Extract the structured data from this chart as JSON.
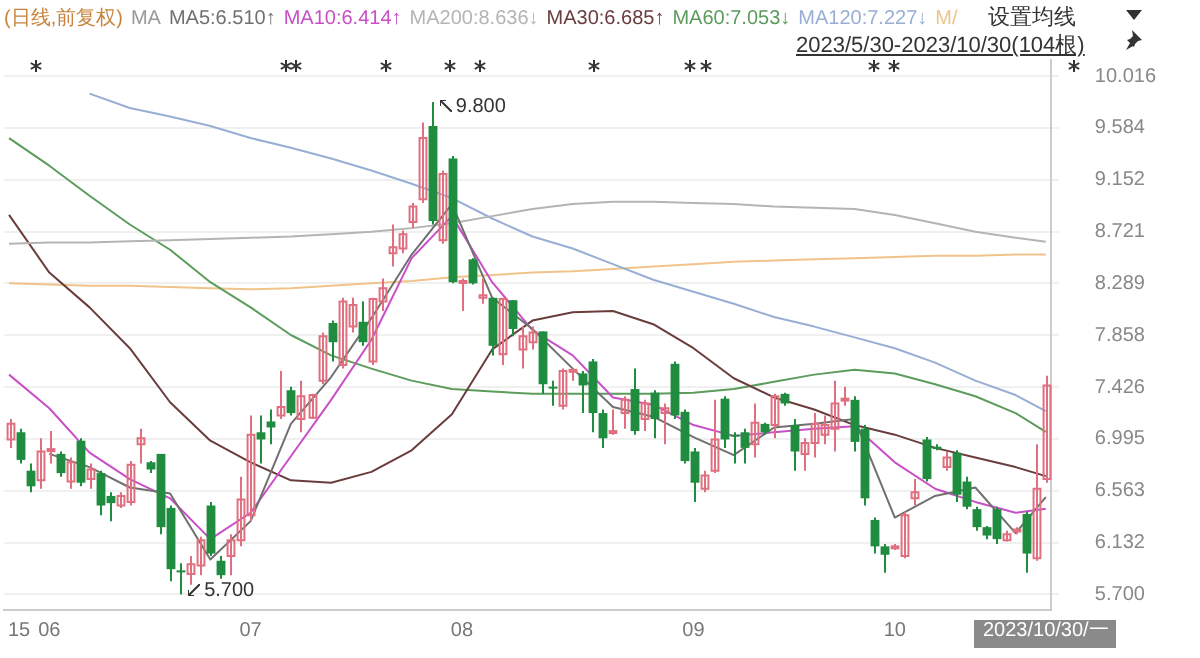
{
  "chart_data": {
    "type": "candlestick",
    "title": "(日线,前复权)",
    "subtitle": "2023/5/30-2023/10/30(104根)",
    "legend_title": "MA",
    "legend": "top left",
    "grid": "y",
    "marker": "none",
    "categories": [
      null,
      "15",
      null,
      null,
      "06",
      null,
      null,
      null,
      null,
      null,
      null,
      null,
      null,
      null,
      null,
      null,
      null,
      null,
      null,
      null,
      null,
      null,
      null,
      null,
      "07",
      null,
      null,
      null,
      null,
      null,
      null,
      null,
      null,
      null,
      null,
      null,
      null,
      null,
      null,
      null,
      null,
      null,
      null,
      null,
      null,
      "08",
      null,
      null,
      null,
      null,
      null,
      null,
      null,
      null,
      null,
      null,
      null,
      null,
      null,
      null,
      null,
      null,
      null,
      null,
      null,
      null,
      null,
      null,
      "09",
      null,
      null,
      null,
      null,
      null,
      null,
      null,
      null,
      null,
      null,
      null,
      null,
      null,
      null,
      null,
      null,
      null,
      null,
      null,
      "10",
      null,
      null,
      null,
      null,
      null,
      null,
      null,
      null,
      null,
      null,
      null,
      null,
      null,
      null,
      "2023/10/30/一"
    ],
    "ylim": [
      5.57,
      10.15
    ],
    "yticks": [
      {
        "value": 5.7,
        "label": "5.700"
      },
      6.132,
      6.563,
      6.995,
      7.426,
      7.858,
      8.289,
      8.721,
      9.152,
      9.584,
      10.016
    ],
    "ohlc": [
      [
        6.99,
        7.16,
        6.92,
        7.12
      ],
      [
        7.05,
        7.08,
        6.79,
        6.82
      ],
      [
        6.73,
        6.79,
        6.55,
        6.6
      ],
      [
        6.65,
        7.0,
        6.58,
        6.89
      ],
      [
        6.9,
        7.06,
        6.79,
        6.91
      ],
      [
        6.87,
        6.89,
        6.68,
        6.71
      ],
      [
        6.64,
        6.84,
        6.58,
        6.8
      ],
      [
        6.98,
        7.0,
        6.6,
        6.63
      ],
      [
        6.66,
        6.79,
        6.58,
        6.74
      ],
      [
        6.71,
        6.73,
        6.36,
        6.44
      ],
      [
        6.52,
        6.55,
        6.31,
        6.46
      ],
      [
        6.44,
        6.55,
        6.42,
        6.52
      ],
      [
        6.47,
        6.81,
        6.44,
        6.78
      ],
      [
        6.95,
        7.08,
        6.79,
        7.0
      ],
      [
        6.8,
        6.81,
        6.71,
        6.74
      ],
      [
        6.87,
        6.87,
        6.2,
        6.26
      ],
      [
        6.42,
        6.44,
        5.81,
        5.91
      ],
      [
        5.9,
        5.96,
        5.7,
        5.89
      ],
      [
        5.87,
        6.02,
        5.78,
        5.95
      ],
      [
        5.94,
        6.18,
        5.86,
        6.15
      ],
      [
        6.44,
        6.47,
        6.02,
        6.04
      ],
      [
        5.98,
        6.02,
        5.83,
        5.86
      ],
      [
        6.02,
        6.2,
        5.86,
        6.15
      ],
      [
        6.15,
        6.68,
        6.1,
        6.49
      ],
      [
        6.36,
        7.19,
        6.31,
        7.03
      ],
      [
        7.05,
        7.19,
        6.79,
        6.99
      ],
      [
        7.14,
        7.24,
        6.95,
        7.09
      ],
      [
        7.19,
        7.56,
        7.16,
        7.26
      ],
      [
        7.4,
        7.43,
        7.19,
        7.21
      ],
      [
        7.16,
        7.48,
        7.05,
        7.35
      ],
      [
        7.17,
        7.37,
        7.16,
        7.36
      ],
      [
        7.48,
        7.88,
        7.45,
        7.85
      ],
      [
        7.96,
        7.98,
        7.64,
        7.8
      ],
      [
        7.61,
        8.17,
        7.58,
        8.14
      ],
      [
        7.93,
        8.17,
        7.88,
        8.11
      ],
      [
        7.97,
        8.14,
        7.77,
        7.8
      ],
      [
        7.64,
        8.17,
        7.61,
        8.16
      ],
      [
        8.14,
        8.33,
        8.06,
        8.25
      ],
      [
        8.54,
        8.78,
        8.43,
        8.59
      ],
      [
        8.58,
        8.73,
        8.54,
        8.7
      ],
      [
        8.8,
        8.96,
        8.75,
        8.93
      ],
      [
        8.99,
        9.63,
        8.96,
        9.5
      ],
      [
        9.6,
        9.8,
        8.78,
        8.81
      ],
      [
        8.65,
        9.23,
        8.62,
        9.2
      ],
      [
        9.33,
        9.35,
        8.29,
        8.3
      ],
      [
        8.3,
        8.33,
        8.06,
        8.31
      ],
      [
        8.49,
        8.5,
        8.28,
        8.29
      ],
      [
        8.17,
        8.33,
        8.12,
        8.19
      ],
      [
        8.17,
        8.17,
        7.69,
        7.77
      ],
      [
        7.7,
        8.17,
        7.61,
        8.16
      ],
      [
        8.15,
        8.15,
        7.85,
        7.91
      ],
      [
        7.74,
        7.93,
        7.58,
        7.85
      ],
      [
        7.8,
        7.93,
        7.74,
        7.88
      ],
      [
        7.89,
        7.89,
        7.37,
        7.45
      ],
      [
        7.43,
        7.48,
        7.27,
        7.42
      ],
      [
        7.27,
        7.58,
        7.24,
        7.56
      ],
      [
        7.57,
        7.58,
        7.48,
        7.57
      ],
      [
        7.54,
        7.56,
        7.21,
        7.44
      ],
      [
        7.64,
        7.66,
        7.05,
        7.21
      ],
      [
        7.21,
        7.24,
        6.92,
        7.0
      ],
      [
        7.05,
        7.24,
        7.03,
        7.06
      ],
      [
        7.21,
        7.35,
        7.08,
        7.32
      ],
      [
        7.41,
        7.58,
        7.03,
        7.06
      ],
      [
        7.16,
        7.32,
        7.06,
        7.29
      ],
      [
        7.38,
        7.4,
        7.0,
        7.16
      ],
      [
        7.21,
        7.29,
        6.95,
        7.25
      ],
      [
        7.62,
        7.64,
        7.16,
        7.19
      ],
      [
        7.22,
        7.24,
        6.79,
        6.81
      ],
      [
        6.89,
        6.92,
        6.47,
        6.63
      ],
      [
        6.58,
        6.73,
        6.55,
        6.69
      ],
      [
        6.73,
        7.32,
        6.71,
        6.99
      ],
      [
        7.33,
        7.35,
        6.92,
        6.99
      ],
      [
        7.03,
        7.05,
        6.79,
        7.02
      ],
      [
        7.05,
        7.08,
        6.79,
        6.92
      ],
      [
        6.95,
        7.29,
        6.84,
        7.13
      ],
      [
        7.12,
        7.13,
        7.03,
        7.05
      ],
      [
        7.11,
        7.37,
        7.0,
        7.35
      ],
      [
        7.37,
        7.38,
        7.27,
        7.29
      ],
      [
        7.11,
        7.16,
        6.73,
        6.89
      ],
      [
        6.87,
        7.0,
        6.73,
        6.96
      ],
      [
        6.96,
        7.21,
        6.84,
        7.12
      ],
      [
        7.03,
        7.19,
        6.95,
        7.11
      ],
      [
        7.08,
        7.48,
        6.89,
        7.29
      ],
      [
        7.32,
        7.43,
        7.27,
        7.33
      ],
      [
        7.32,
        7.35,
        6.89,
        6.97
      ],
      [
        7.08,
        7.11,
        6.44,
        6.5
      ],
      [
        6.32,
        6.34,
        6.04,
        6.1
      ],
      [
        6.1,
        6.12,
        5.88,
        6.03
      ],
      [
        6.09,
        6.12,
        6.07,
        6.1
      ],
      [
        6.02,
        6.39,
        6.0,
        6.36
      ],
      [
        6.5,
        6.66,
        6.44,
        6.55
      ],
      [
        6.99,
        7.01,
        6.64,
        6.66
      ],
      [
        6.93,
        6.95,
        6.9,
        6.91
      ],
      [
        6.76,
        6.89,
        6.73,
        6.84
      ],
      [
        6.88,
        6.9,
        6.47,
        6.53
      ],
      [
        6.64,
        6.68,
        6.41,
        6.43
      ],
      [
        6.41,
        6.43,
        6.23,
        6.26
      ],
      [
        6.26,
        6.27,
        6.16,
        6.19
      ],
      [
        6.41,
        6.43,
        6.12,
        6.16
      ],
      [
        6.15,
        6.23,
        6.14,
        6.2
      ],
      [
        6.23,
        6.26,
        6.2,
        6.24
      ],
      [
        6.37,
        6.39,
        5.88,
        6.04
      ],
      [
        6.0,
        6.95,
        5.98,
        6.58
      ],
      [
        6.66,
        7.52,
        6.63,
        7.44
      ]
    ],
    "colors": [
      "#e0707f",
      "#1f8c3f",
      "#1f8c3f",
      "#e0707f",
      "#e0707f",
      "#1f8c3f",
      "#e0707f",
      "#1f8c3f",
      "#e0707f",
      "#1f8c3f",
      "#1f8c3f",
      "#e0707f",
      "#e0707f",
      "#e0707f",
      "#1f8c3f",
      "#1f8c3f",
      "#1f8c3f",
      "#1f8c3f",
      "#e0707f",
      "#e0707f",
      "#1f8c3f",
      "#1f8c3f",
      "#e0707f",
      "#e0707f",
      "#e0707f",
      "#1f8c3f",
      "#1f8c3f",
      "#e0707f",
      "#1f8c3f",
      "#e0707f",
      "#e0707f",
      "#e0707f",
      "#1f8c3f",
      "#e0707f",
      "#e0707f",
      "#1f8c3f",
      "#e0707f",
      "#e0707f",
      "#e0707f",
      "#e0707f",
      "#e0707f",
      "#e0707f",
      "#1f8c3f",
      "#e0707f",
      "#1f8c3f",
      "#e0707f",
      "#1f8c3f",
      "#e0707f",
      "#1f8c3f",
      "#e0707f",
      "#1f8c3f",
      "#e0707f",
      "#e0707f",
      "#1f8c3f",
      "#1f8c3f",
      "#e0707f",
      "#e0707f",
      "#1f8c3f",
      "#1f8c3f",
      "#1f8c3f",
      "#e0707f",
      "#e0707f",
      "#1f8c3f",
      "#e0707f",
      "#1f8c3f",
      "#e0707f",
      "#1f8c3f",
      "#1f8c3f",
      "#1f8c3f",
      "#e0707f",
      "#e0707f",
      "#1f8c3f",
      "#1f8c3f",
      "#1f8c3f",
      "#e0707f",
      "#1f8c3f",
      "#e0707f",
      "#1f8c3f",
      "#1f8c3f",
      "#e0707f",
      "#e0707f",
      "#e0707f",
      "#e0707f",
      "#e0707f",
      "#1f8c3f",
      "#1f8c3f",
      "#1f8c3f",
      "#1f8c3f",
      "#e0707f",
      "#e0707f",
      "#e0707f",
      "#1f8c3f",
      "#1f8c3f",
      "#e0707f",
      "#1f8c3f",
      "#1f8c3f",
      "#1f8c3f",
      "#1f8c3f",
      "#1f8c3f",
      "#e0707f",
      "#e0707f",
      "#1f8c3f",
      "#e0707f",
      "#e0707f"
    ],
    "series": [
      {
        "type": "line",
        "name": "MA5:6.510↑",
        "color": "#707070",
        "values": [
          null,
          null,
          null,
          null,
          6.87,
          null,
          null,
          null,
          6.76,
          null,
          null,
          null,
          6.59,
          null,
          null,
          null,
          6.54,
          null,
          null,
          null,
          5.99,
          null,
          null,
          null,
          6.31,
          null,
          null,
          null,
          7.12,
          null,
          null,
          null,
          7.51,
          null,
          null,
          null,
          8.0,
          null,
          null,
          null,
          8.53,
          null,
          null,
          null,
          8.95,
          null,
          null,
          null,
          8.17,
          null,
          null,
          null,
          7.91,
          null,
          null,
          null,
          7.58,
          null,
          null,
          null,
          7.26,
          null,
          null,
          null,
          7.18,
          null,
          null,
          null,
          7.01,
          null,
          null,
          null,
          6.86,
          null,
          null,
          null,
          7.09,
          null,
          null,
          null,
          7.12,
          null,
          null,
          null,
          7.16,
          null,
          null,
          null,
          6.34,
          null,
          null,
          null,
          6.52,
          null,
          null,
          null,
          6.59,
          null,
          null,
          null,
          6.21,
          null,
          null,
          6.51
        ]
      },
      {
        "type": "line",
        "name": "MA10:6.414↑",
        "color": "#c84fc8",
        "values": [
          7.53,
          null,
          null,
          null,
          7.25,
          null,
          null,
          null,
          6.88,
          null,
          null,
          null,
          6.66,
          null,
          null,
          null,
          6.5,
          null,
          null,
          null,
          6.16,
          null,
          null,
          null,
          6.38,
          null,
          null,
          null,
          6.85,
          null,
          null,
          null,
          7.32,
          null,
          null,
          null,
          7.82,
          null,
          null,
          null,
          8.5,
          null,
          null,
          null,
          8.85,
          null,
          null,
          null,
          8.3,
          null,
          null,
          null,
          7.9,
          null,
          null,
          null,
          7.69,
          null,
          null,
          null,
          7.34,
          null,
          null,
          null,
          7.28,
          null,
          null,
          null,
          7.11,
          null,
          null,
          null,
          7.02,
          null,
          null,
          null,
          7.05,
          null,
          null,
          null,
          7.08,
          null,
          null,
          null,
          7.1,
          null,
          null,
          null,
          6.8,
          null,
          null,
          null,
          6.58,
          null,
          null,
          null,
          6.47,
          null,
          null,
          null,
          6.38,
          null,
          null,
          6.414
        ]
      },
      {
        "type": "line",
        "name": "MA200:8.636↓",
        "color": "#b4b4b4",
        "values": [
          8.62,
          null,
          null,
          null,
          8.63,
          null,
          null,
          null,
          8.63,
          null,
          null,
          null,
          8.64,
          null,
          null,
          null,
          8.65,
          null,
          null,
          null,
          8.66,
          null,
          null,
          null,
          8.67,
          null,
          null,
          null,
          8.68,
          null,
          null,
          null,
          8.7,
          null,
          null,
          null,
          8.72,
          null,
          null,
          null,
          8.75,
          null,
          null,
          null,
          8.79,
          null,
          null,
          null,
          8.85,
          null,
          null,
          null,
          8.91,
          null,
          null,
          null,
          8.95,
          null,
          null,
          null,
          8.97,
          null,
          null,
          null,
          8.97,
          null,
          null,
          null,
          8.96,
          null,
          null,
          null,
          8.95,
          null,
          null,
          null,
          8.93,
          null,
          null,
          null,
          8.92,
          null,
          null,
          null,
          8.91,
          null,
          null,
          null,
          8.86,
          null,
          null,
          null,
          8.79,
          null,
          null,
          null,
          8.72,
          null,
          null,
          null,
          8.67,
          null,
          null,
          8.636
        ]
      },
      {
        "type": "line",
        "name": "MA30:6.685↑",
        "color": "#6a3c3c",
        "values": [
          8.86,
          null,
          null,
          null,
          8.38,
          null,
          null,
          null,
          8.09,
          null,
          null,
          null,
          7.75,
          null,
          null,
          null,
          7.3,
          null,
          null,
          null,
          6.98,
          null,
          null,
          null,
          6.8,
          null,
          null,
          null,
          6.65,
          null,
          null,
          null,
          6.63,
          null,
          null,
          null,
          6.72,
          null,
          null,
          null,
          6.9,
          null,
          null,
          null,
          7.2,
          null,
          null,
          null,
          7.74,
          null,
          null,
          null,
          7.98,
          null,
          null,
          null,
          8.05,
          null,
          null,
          null,
          8.06,
          null,
          null,
          null,
          7.95,
          null,
          null,
          null,
          7.75,
          null,
          null,
          null,
          7.5,
          null,
          null,
          null,
          7.34,
          null,
          null,
          null,
          7.24,
          null,
          null,
          null,
          7.11,
          null,
          null,
          null,
          7.03,
          null,
          null,
          null,
          6.92,
          null,
          null,
          null,
          6.84,
          null,
          null,
          null,
          6.76,
          null,
          null,
          6.685
        ]
      },
      {
        "type": "line",
        "name": "MA60:7.053↓",
        "color": "#5c9c5c",
        "values": [
          9.5,
          null,
          null,
          null,
          9.27,
          null,
          null,
          null,
          9.02,
          null,
          null,
          null,
          8.78,
          null,
          null,
          null,
          8.57,
          null,
          null,
          null,
          8.3,
          null,
          null,
          null,
          8.09,
          null,
          null,
          null,
          7.86,
          null,
          null,
          null,
          7.69,
          null,
          null,
          null,
          7.58,
          null,
          null,
          null,
          7.48,
          null,
          null,
          null,
          7.41,
          null,
          null,
          null,
          7.39,
          null,
          null,
          null,
          7.37,
          null,
          null,
          null,
          7.37,
          null,
          null,
          null,
          7.37,
          null,
          null,
          null,
          7.37,
          null,
          null,
          null,
          7.38,
          null,
          null,
          null,
          7.41,
          null,
          null,
          null,
          7.47,
          null,
          null,
          null,
          7.53,
          null,
          null,
          null,
          7.57,
          null,
          null,
          null,
          7.54,
          null,
          null,
          null,
          7.45,
          null,
          null,
          null,
          7.35,
          null,
          null,
          null,
          7.21,
          null,
          null,
          7.053
        ]
      },
      {
        "type": "line",
        "name": "MA120:7.227↓",
        "color": "#98aed4",
        "values": [
          null,
          null,
          null,
          null,
          null,
          null,
          null,
          null,
          9.87,
          null,
          null,
          null,
          9.75,
          null,
          null,
          null,
          9.68,
          null,
          null,
          null,
          9.6,
          null,
          null,
          null,
          9.5,
          null,
          null,
          null,
          9.42,
          null,
          null,
          null,
          9.33,
          null,
          null,
          null,
          9.23,
          null,
          null,
          null,
          9.12,
          null,
          null,
          null,
          9.0,
          null,
          null,
          null,
          8.83,
          null,
          null,
          null,
          8.68,
          null,
          null,
          null,
          8.58,
          null,
          null,
          null,
          8.45,
          null,
          null,
          null,
          8.32,
          null,
          null,
          null,
          8.22,
          null,
          null,
          null,
          8.12,
          null,
          null,
          null,
          8.01,
          null,
          null,
          null,
          7.93,
          null,
          null,
          null,
          7.84,
          null,
          null,
          null,
          7.75,
          null,
          null,
          null,
          7.63,
          null,
          null,
          null,
          7.48,
          null,
          null,
          null,
          7.36,
          null,
          null,
          7.227
        ]
      },
      {
        "type": "line",
        "name": "M/",
        "color": "#f0c38a",
        "values": [
          8.29,
          null,
          null,
          null,
          8.28,
          null,
          null,
          null,
          8.27,
          null,
          null,
          null,
          8.27,
          null,
          null,
          null,
          8.26,
          null,
          null,
          null,
          8.25,
          null,
          null,
          null,
          8.24,
          null,
          null,
          null,
          8.25,
          null,
          null,
          null,
          8.27,
          null,
          null,
          null,
          8.29,
          null,
          null,
          null,
          8.31,
          null,
          null,
          null,
          8.34,
          null,
          null,
          null,
          8.36,
          null,
          null,
          null,
          8.38,
          null,
          null,
          null,
          8.39,
          null,
          null,
          null,
          8.41,
          null,
          null,
          null,
          8.43,
          null,
          null,
          null,
          8.45,
          null,
          null,
          null,
          8.47,
          null,
          null,
          null,
          8.48,
          null,
          null,
          null,
          8.49,
          null,
          null,
          null,
          8.5,
          null,
          null,
          null,
          8.51,
          null,
          null,
          null,
          8.52,
          null,
          null,
          null,
          8.52,
          null,
          null,
          null,
          8.53,
          null,
          null,
          8.53
        ]
      }
    ],
    "annotations": [
      "设置均线",
      "9.800",
      "5.700"
    ]
  }
}
